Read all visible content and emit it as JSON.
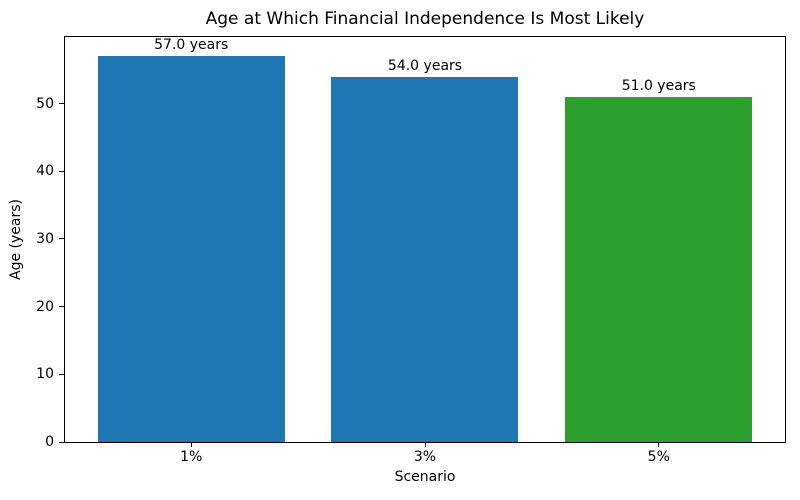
{
  "chart_data": {
    "type": "bar",
    "title": "Age at Which Financial Independence Is Most Likely",
    "xlabel": "Scenario",
    "ylabel": "Age (years)",
    "categories": [
      "1%",
      "3%",
      "5%"
    ],
    "values": [
      57.0,
      54.0,
      51.0
    ],
    "bar_labels": [
      "57.0 years",
      "54.0 years",
      "51.0 years"
    ],
    "bar_colors": [
      "#1f77b4",
      "#1f77b4",
      "#2ca02c"
    ],
    "yticks": [
      0,
      10,
      20,
      30,
      40,
      50
    ],
    "ylim": [
      0,
      59.85
    ],
    "xlim": [
      -0.54,
      2.54
    ],
    "bar_width": 0.8,
    "grid": false,
    "legend": "none",
    "background_color": "#ffffff",
    "spine_color": "#000000",
    "text_color": "#000000"
  }
}
